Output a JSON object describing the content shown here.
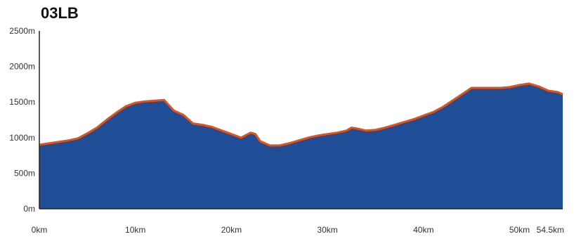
{
  "chart_data": {
    "type": "area",
    "title": "03LB",
    "xlabel": "",
    "ylabel": "",
    "xlim": [
      0,
      54.5
    ],
    "ylim": [
      0,
      2500
    ],
    "grid": false,
    "x_ticks": [
      {
        "value": 0,
        "label": "0km"
      },
      {
        "value": 10,
        "label": "10km"
      },
      {
        "value": 20,
        "label": "20km"
      },
      {
        "value": 30,
        "label": "30km"
      },
      {
        "value": 40,
        "label": "40km"
      },
      {
        "value": 50,
        "label": "50km"
      },
      {
        "value": 54.5,
        "label": "54.5km"
      }
    ],
    "y_ticks": [
      {
        "value": 0,
        "label": "0m"
      },
      {
        "value": 500,
        "label": "500m"
      },
      {
        "value": 1000,
        "label": "1000m"
      },
      {
        "value": 1500,
        "label": "1500m"
      },
      {
        "value": 2000,
        "label": "2000m"
      },
      {
        "value": 2500,
        "label": "2500m"
      }
    ],
    "series": [
      {
        "fill_color": "#1f4e96",
        "line_color": "#e0541c",
        "x": [
          0,
          1,
          2,
          3,
          4,
          5,
          6,
          7,
          8,
          9,
          10,
          11,
          12,
          13,
          14,
          15,
          16,
          17,
          18,
          19,
          20,
          21,
          22,
          22.5,
          23,
          24,
          25,
          26,
          27,
          28,
          29,
          30,
          31,
          32,
          32.5,
          33,
          34,
          35,
          36,
          37,
          38,
          39,
          40,
          41,
          42,
          43,
          44,
          45,
          46,
          47,
          48,
          49,
          50,
          51,
          52,
          53,
          54,
          54.5
        ],
        "y": [
          900,
          920,
          940,
          960,
          990,
          1060,
          1140,
          1250,
          1350,
          1440,
          1490,
          1510,
          1520,
          1530,
          1380,
          1320,
          1200,
          1180,
          1150,
          1100,
          1050,
          1000,
          1070,
          1050,
          950,
          890,
          890,
          920,
          960,
          1000,
          1030,
          1050,
          1070,
          1100,
          1140,
          1130,
          1100,
          1110,
          1140,
          1180,
          1220,
          1260,
          1310,
          1360,
          1430,
          1520,
          1610,
          1700,
          1700,
          1700,
          1700,
          1710,
          1740,
          1760,
          1720,
          1660,
          1640,
          1610
        ]
      }
    ]
  }
}
